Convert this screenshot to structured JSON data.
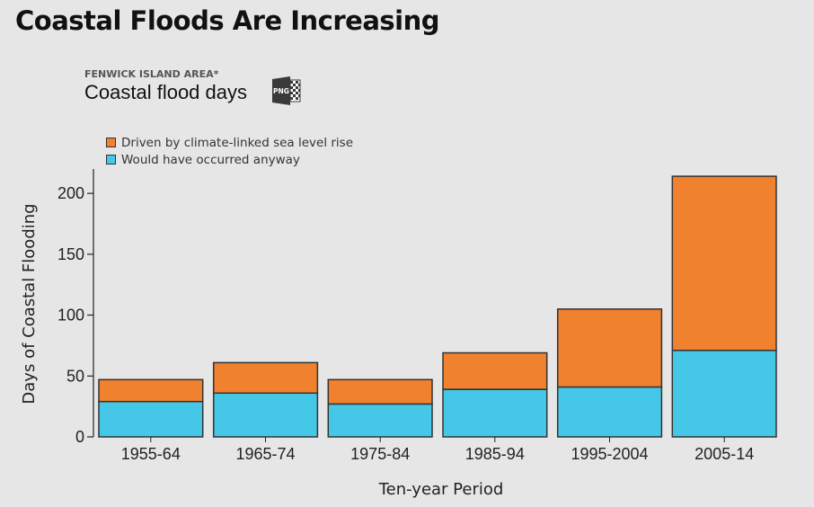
{
  "page": {
    "title": "Coastal Floods Are Increasing"
  },
  "chart_header": {
    "kicker": "FENWICK ISLAND AREA*",
    "title": "Coastal flood days",
    "download_label": "PNG"
  },
  "colors": {
    "climate": "#f0812e",
    "anyway": "#45c8e8",
    "stroke": "#333333"
  },
  "chart_data": {
    "type": "bar",
    "stacked": true,
    "categories": [
      "1955-64",
      "1965-74",
      "1975-84",
      "1985-94",
      "1995-2004",
      "2005-14"
    ],
    "series": [
      {
        "name": "Would have occurred anyway",
        "values": [
          29,
          36,
          27,
          39,
          41,
          71
        ]
      },
      {
        "name": "Driven by climate-linked sea level rise",
        "values": [
          18,
          25,
          20,
          30,
          64,
          143
        ]
      }
    ],
    "legend": [
      {
        "label": "Driven by climate-linked sea level rise",
        "color": "#f0812e"
      },
      {
        "label": "Would have occurred anyway",
        "color": "#45c8e8"
      }
    ],
    "xlabel": "Ten-year Period",
    "ylabel": "Days of Coastal Flooding",
    "ylim": [
      0,
      220
    ],
    "yticks": [
      0,
      50,
      100,
      150,
      200
    ],
    "legend_position": "top-left"
  }
}
